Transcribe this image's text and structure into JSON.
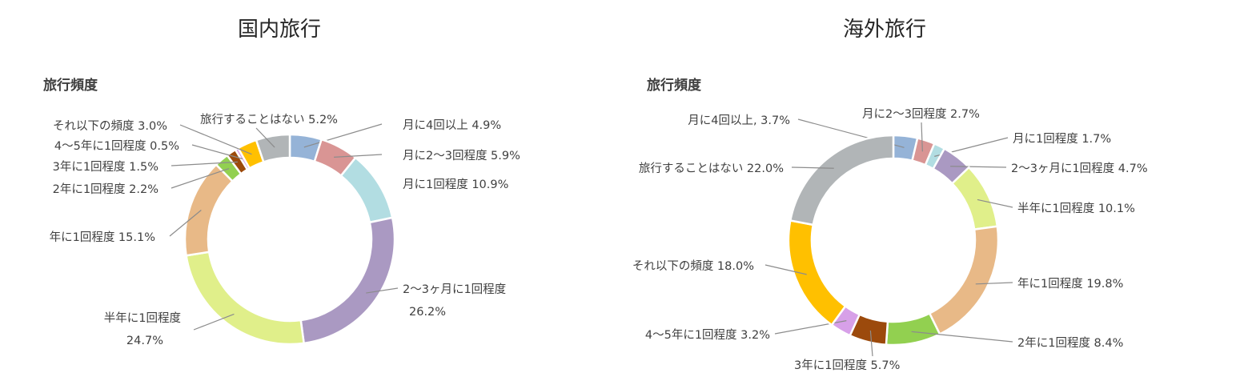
{
  "chart_data": [
    {
      "type": "pie",
      "title": "国内旅行",
      "subtitle": "旅行頻度",
      "slices": [
        {
          "label": "月に4回以上",
          "value": 4.9,
          "text": "月に4回以上 4.9%",
          "color": "#95b3d7"
        },
        {
          "label": "月に2〜3回程度",
          "value": 5.9,
          "text": "月に2〜3回程度 5.9%",
          "color": "#d99594"
        },
        {
          "label": "月に1回程度",
          "value": 10.9,
          "text": "月に1回程度 10.9%",
          "color": "#b2dde2"
        },
        {
          "label": "2〜3ヶ月に1回程度",
          "value": 26.2,
          "text": "2〜3ヶ月に1回程度\n26.2%",
          "color": "#aa99c2"
        },
        {
          "label": "半年に1回程度",
          "value": 24.7,
          "text": "半年に1回程度\n24.7%",
          "color": "#e0ef8a"
        },
        {
          "label": "年に1回程度",
          "value": 15.1,
          "text": "年に1回程度 15.1%",
          "color": "#e8b987"
        },
        {
          "label": "2年に1回程度",
          "value": 2.2,
          "text": "2年に1回程度 2.2%",
          "color": "#92d050"
        },
        {
          "label": "3年に1回程度",
          "value": 1.5,
          "text": "3年に1回程度 1.5%",
          "color": "#9c4a0c"
        },
        {
          "label": "4〜5年に1回程度",
          "value": 0.5,
          "text": "4〜5年に1回程度 0.5%",
          "color": "#d7a0e8"
        },
        {
          "label": "それ以下の頻度",
          "value": 3.0,
          "text": "それ以下の頻度 3.0%",
          "color": "#ffc000"
        },
        {
          "label": "旅行することはない",
          "value": 5.2,
          "text": "旅行することはない 5.2%",
          "color": "#b1b5b7"
        }
      ]
    },
    {
      "type": "pie",
      "title": "海外旅行",
      "subtitle": "旅行頻度",
      "slices": [
        {
          "label": "月に4回以上",
          "value": 3.7,
          "text": "月に4回以上, 3.7%",
          "color": "#95b3d7"
        },
        {
          "label": "月に2〜3回程度",
          "value": 2.7,
          "text": "月に2〜3回程度 2.7%",
          "color": "#d99594"
        },
        {
          "label": "月に1回程度",
          "value": 1.7,
          "text": "月に1回程度 1.7%",
          "color": "#b2dde2"
        },
        {
          "label": "2〜3ヶ月に1回程度",
          "value": 4.7,
          "text": "2〜3ヶ月に1回程度 4.7%",
          "color": "#aa99c2"
        },
        {
          "label": "半年に1回程度",
          "value": 10.1,
          "text": "半年に1回程度 10.1%",
          "color": "#e0ef8a"
        },
        {
          "label": "年に1回程度",
          "value": 19.8,
          "text": "年に1回程度 19.8%",
          "color": "#e8b987"
        },
        {
          "label": "2年に1回程度",
          "value": 8.4,
          "text": "2年に1回程度 8.4%",
          "color": "#92d050"
        },
        {
          "label": "3年に1回程度",
          "value": 5.7,
          "text": "3年に1回程度 5.7%",
          "color": "#9c4a0c"
        },
        {
          "label": "4〜5年に1回程度",
          "value": 3.2,
          "text": "4〜5年に1回程度 3.2%",
          "color": "#d7a0e8"
        },
        {
          "label": "それ以下の頻度",
          "value": 18.0,
          "text": "それ以下の頻度 18.0%",
          "color": "#ffc000"
        },
        {
          "label": "旅行することはない",
          "value": 22.0,
          "text": "旅行することはない 22.0%",
          "color": "#b1b5b7"
        }
      ]
    }
  ]
}
